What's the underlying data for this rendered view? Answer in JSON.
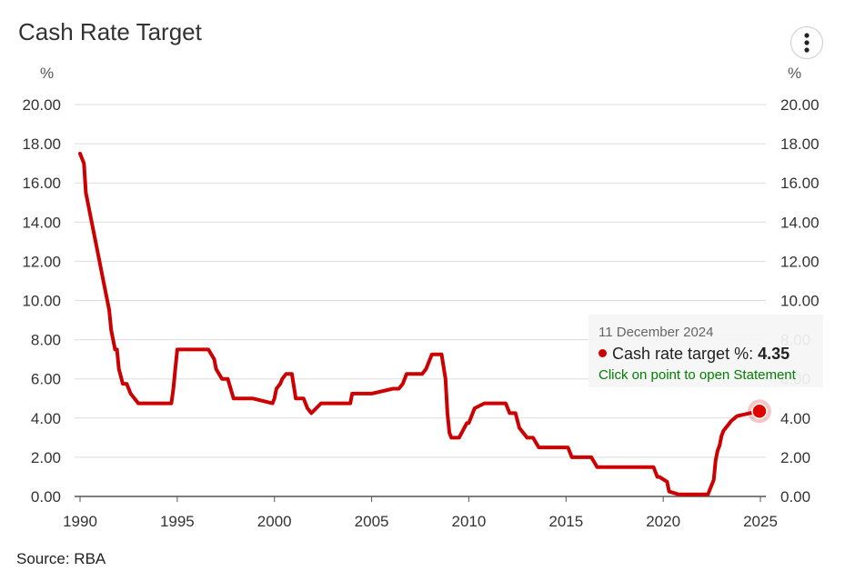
{
  "title": "Cash Rate Target",
  "menu_icon": "vertical-ellipsis-icon",
  "unit_left": "%",
  "unit_right": "%",
  "source": "Source: RBA",
  "tooltip": {
    "date": "11 December 2024",
    "series_label": "Cash rate target %:",
    "value": "4.35",
    "link": "Click on point to open Statement"
  },
  "colors": {
    "line": "#cc0000",
    "grid": "#dddddd",
    "link": "#008000"
  },
  "chart_data": {
    "type": "line",
    "title": "Cash Rate Target",
    "xlabel": "",
    "ylabel": "%",
    "xlim": [
      1990,
      2025
    ],
    "ylim": [
      0,
      20
    ],
    "x_ticks": [
      "1990",
      "1995",
      "2000",
      "2005",
      "2010",
      "2015",
      "2020",
      "2025"
    ],
    "y_ticks": [
      "0.00",
      "2.00",
      "4.00",
      "6.00",
      "8.00",
      "10.00",
      "12.00",
      "14.00",
      "16.00",
      "18.00",
      "20.00"
    ],
    "grid": true,
    "series": [
      {
        "name": "Cash rate target %",
        "x": [
          1990.0,
          1990.2,
          1990.3,
          1990.6,
          1990.8,
          1991.0,
          1991.1,
          1991.3,
          1991.5,
          1991.6,
          1991.8,
          1991.9,
          1992.0,
          1992.2,
          1992.4,
          1992.6,
          1993.0,
          1993.4,
          1993.8,
          1994.7,
          1994.8,
          1994.9,
          1995.0,
          1995.1,
          1996.6,
          1996.9,
          1997.0,
          1997.3,
          1997.6,
          1997.9,
          1998.9,
          1999.9,
          2000.0,
          2000.1,
          2000.3,
          2000.4,
          2000.6,
          2000.9,
          2001.1,
          2001.5,
          2001.7,
          2001.9,
          2002.4,
          2003.9,
          2004.0,
          2005.0,
          2006.1,
          2006.4,
          2006.6,
          2006.8,
          2007.6,
          2007.8,
          2007.9,
          2008.1,
          2008.6,
          2008.8,
          2008.9,
          2009.0,
          2009.1,
          2009.5,
          2009.9,
          2010.0,
          2010.3,
          2010.8,
          2011.9,
          2012.1,
          2012.4,
          2012.6,
          2013.0,
          2013.3,
          2013.6,
          2015.1,
          2015.3,
          2016.3,
          2016.6,
          2019.5,
          2019.7,
          2019.8,
          2020.2,
          2020.3,
          2020.8,
          2022.3,
          2022.4,
          2022.6,
          2022.7,
          2022.8,
          2022.9,
          2023.0,
          2023.1,
          2023.3,
          2023.5,
          2023.8,
          2024.9
        ],
        "y": [
          17.5,
          17.0,
          15.5,
          14.0,
          13.0,
          12.0,
          11.5,
          10.5,
          9.5,
          8.5,
          7.5,
          7.5,
          6.5,
          5.75,
          5.75,
          5.25,
          4.75,
          4.75,
          4.75,
          4.75,
          5.5,
          6.5,
          7.5,
          7.5,
          7.5,
          7.0,
          6.5,
          6.0,
          6.0,
          5.0,
          5.0,
          4.75,
          5.0,
          5.5,
          5.75,
          6.0,
          6.25,
          6.25,
          5.0,
          5.0,
          4.5,
          4.25,
          4.75,
          4.75,
          5.25,
          5.25,
          5.5,
          5.5,
          5.75,
          6.25,
          6.25,
          6.5,
          6.75,
          7.25,
          7.25,
          6.0,
          4.25,
          3.25,
          3.0,
          3.0,
          3.75,
          3.75,
          4.5,
          4.75,
          4.75,
          4.25,
          4.25,
          3.5,
          3.0,
          3.0,
          2.5,
          2.5,
          2.0,
          2.0,
          1.5,
          1.5,
          1.0,
          1.0,
          0.75,
          0.25,
          0.1,
          0.1,
          0.35,
          0.85,
          1.85,
          2.35,
          2.6,
          3.1,
          3.35,
          3.6,
          3.85,
          4.1,
          4.35
        ]
      }
    ],
    "highlight": {
      "x": 2024.95,
      "y": 4.35
    }
  }
}
